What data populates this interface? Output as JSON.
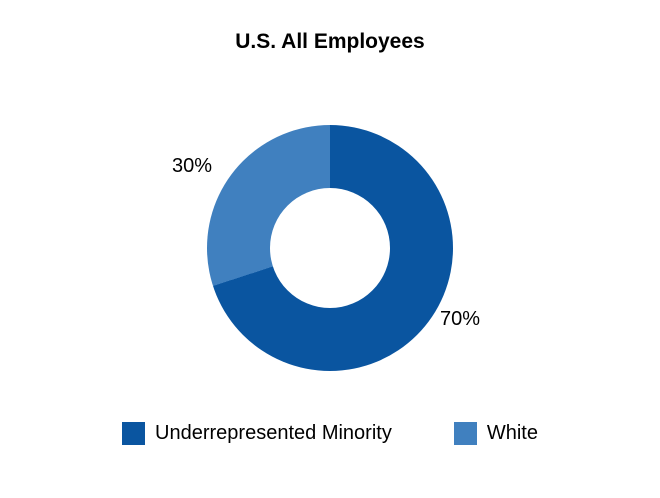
{
  "chart_data": {
    "type": "pie",
    "subtype": "donut",
    "title": "U.S. All Employees",
    "hole_ratio": 0.49,
    "start_angle_deg": 0,
    "direction": "clockwise",
    "legend_position": "bottom",
    "slices": [
      {
        "label": "Underrepresented Minority",
        "value": 70,
        "data_label": "70%",
        "color": "#0a55a0"
      },
      {
        "label": "White",
        "value": 30,
        "data_label": "30%",
        "color": "#4080bf"
      }
    ]
  }
}
